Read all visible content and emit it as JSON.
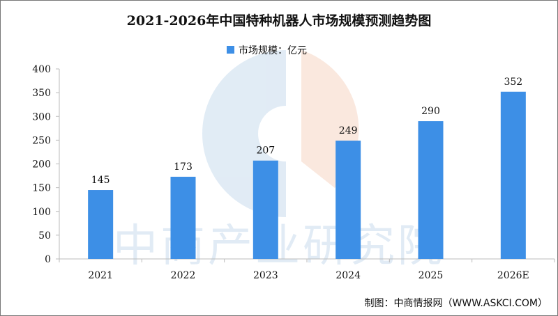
{
  "chart_data": {
    "type": "bar",
    "title": "2021-2026年中国特种机器人市场规模预测趋势图",
    "legend": {
      "label": "市场规模：亿元",
      "placement": "top"
    },
    "categories": [
      "2021",
      "2022",
      "2023",
      "2024",
      "2025",
      "2026E"
    ],
    "series": [
      {
        "name": "市场规模：亿元",
        "values": [
          145,
          173,
          207,
          249,
          290,
          352
        ],
        "color": "#3d8fe6"
      }
    ],
    "data_labels": [
      "145",
      "173",
      "207",
      "249",
      "290",
      "352"
    ],
    "ylim": [
      0,
      400
    ],
    "yticks": [
      "0",
      "50",
      "100",
      "150",
      "200",
      "250",
      "300",
      "350",
      "400"
    ],
    "grid": false,
    "source": "制图：中商情报网（WWW.ASKCI.COM）",
    "watermark": "中商产业研究院"
  }
}
